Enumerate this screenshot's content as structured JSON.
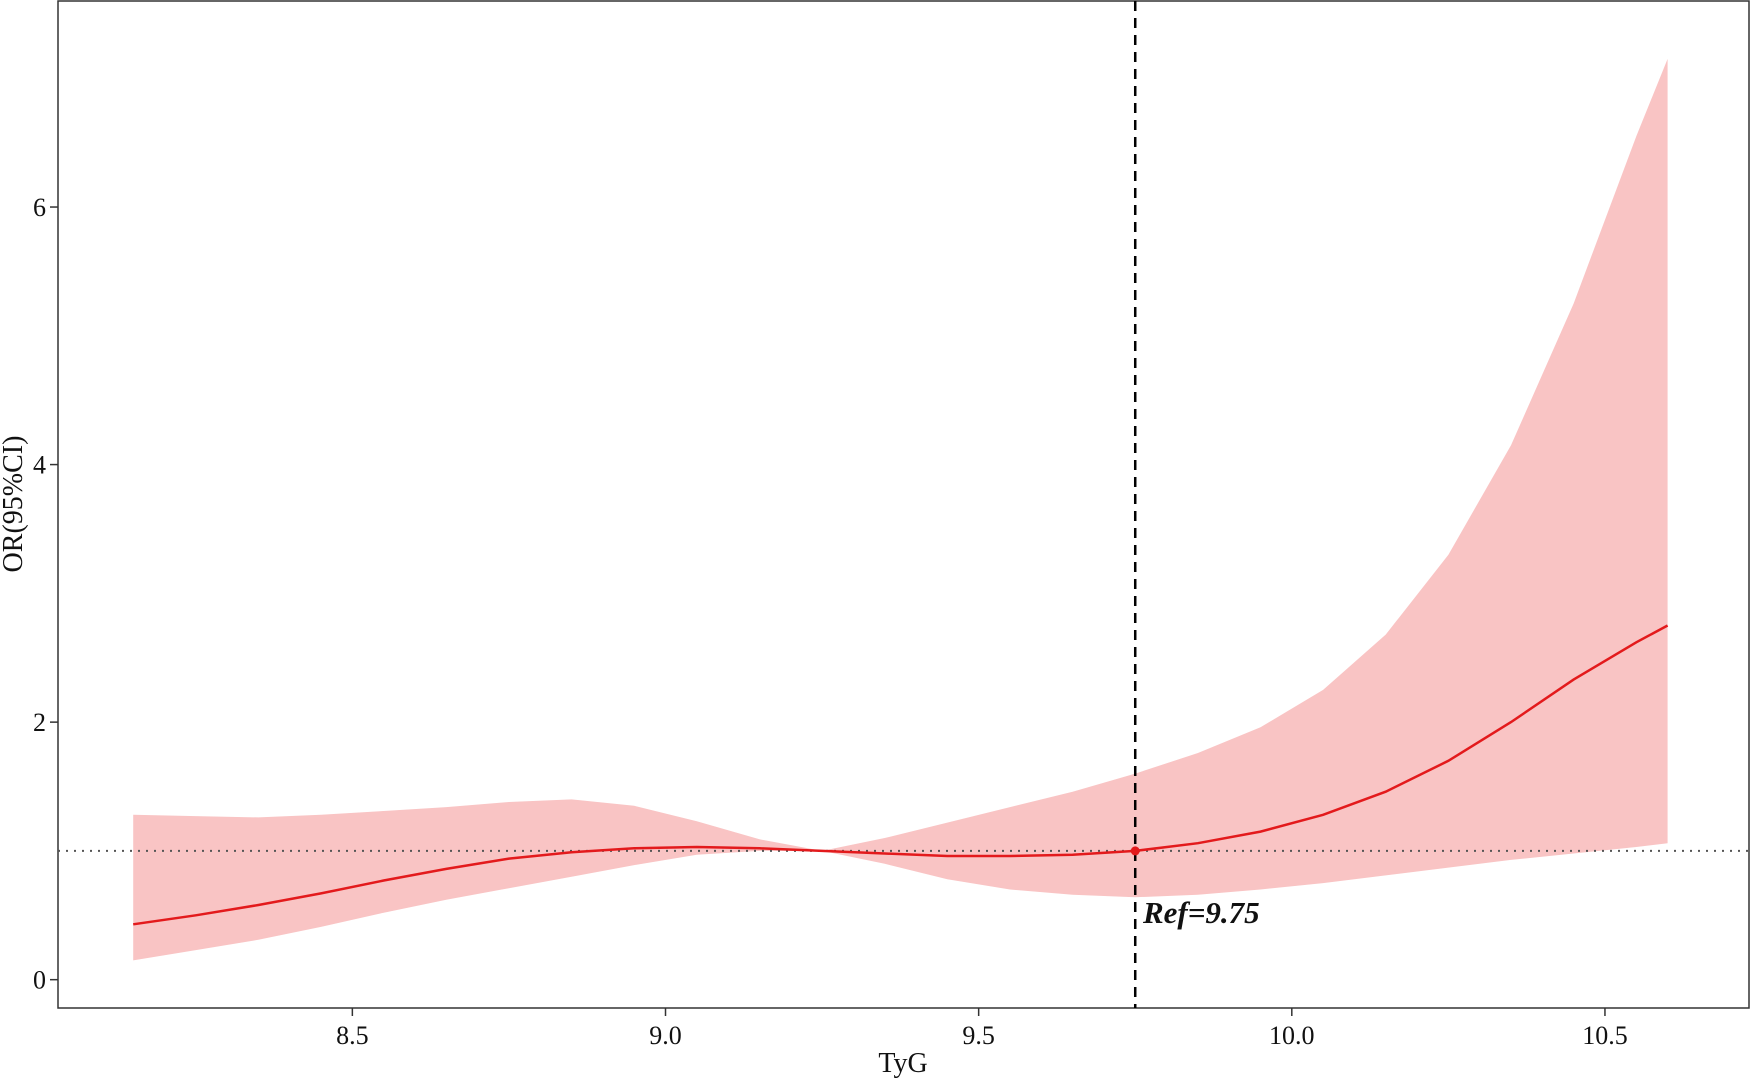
{
  "chart_data": {
    "type": "line",
    "xlabel": "TyG",
    "ylabel": "OR(95%CI)",
    "xlim": [
      8.03,
      10.73
    ],
    "ylim": [
      -0.22,
      7.6
    ],
    "x_ticks": [
      8.5,
      9.0,
      9.5,
      10.0,
      10.5
    ],
    "x_tick_labels": [
      "8.5",
      "9.0",
      "9.5",
      "10.0",
      "10.5"
    ],
    "y_ticks": [
      0,
      2,
      4,
      6
    ],
    "y_tick_labels": [
      "0",
      "2",
      "4",
      "6"
    ],
    "grid": false,
    "reference_line_y": 1,
    "reference_x": 9.75,
    "reference_label": "Ref=9.75",
    "colors": {
      "line": "#e31a1c",
      "band": "#f9c4c4",
      "ref_point": "#e31a1c"
    },
    "series": [
      {
        "x": [
          8.15,
          8.25,
          8.35,
          8.45,
          8.55,
          8.65,
          8.75,
          8.85,
          8.95,
          9.05,
          9.15,
          9.25,
          9.35,
          9.45,
          9.55,
          9.65,
          9.75,
          9.85,
          9.95,
          10.05,
          10.15,
          10.25,
          10.35,
          10.45,
          10.55,
          10.6
        ],
        "values": [
          0.43,
          0.5,
          0.58,
          0.67,
          0.77,
          0.86,
          0.94,
          0.99,
          1.02,
          1.03,
          1.02,
          1.0,
          0.98,
          0.96,
          0.96,
          0.97,
          1.0,
          1.06,
          1.15,
          1.28,
          1.46,
          1.7,
          2.0,
          2.33,
          2.62,
          2.75
        ],
        "lower": [
          0.15,
          0.23,
          0.31,
          0.41,
          0.52,
          0.62,
          0.71,
          0.8,
          0.89,
          0.97,
          1.0,
          1.0,
          0.9,
          0.78,
          0.7,
          0.66,
          0.64,
          0.66,
          0.7,
          0.75,
          0.81,
          0.87,
          0.93,
          0.98,
          1.03,
          1.06
        ],
        "upper": [
          1.28,
          1.27,
          1.26,
          1.28,
          1.31,
          1.34,
          1.38,
          1.4,
          1.35,
          1.23,
          1.09,
          1.0,
          1.1,
          1.22,
          1.34,
          1.46,
          1.6,
          1.76,
          1.96,
          2.25,
          2.68,
          3.3,
          4.15,
          5.25,
          6.55,
          7.15
        ]
      }
    ]
  }
}
